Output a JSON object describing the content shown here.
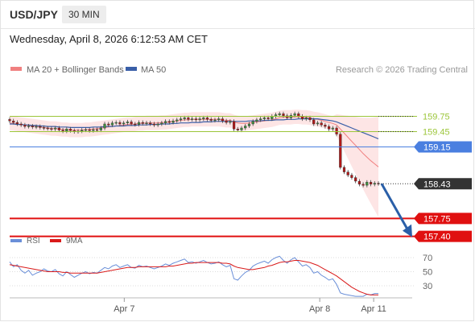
{
  "header": {
    "symbol": "USD/JPY",
    "timeframe": "30 MIN",
    "datetime": "Wednesday, April 8, 2026 6:12:53 AM CET"
  },
  "legend": {
    "bollinger": "MA 20 + Bollinger Bands",
    "ma50": "MA 50",
    "credit": "Research © 2026 Trading Central",
    "rsi": "RSI",
    "rsi_ma": "9MA"
  },
  "colors": {
    "bollinger": "#f08080",
    "ma50": "#3a5fa8",
    "resistance": "#9cc63a",
    "pivot": "#4a7fe0",
    "support": "#e01010",
    "current": "#333333",
    "bull": "#3f8f3f",
    "bear": "#b01818",
    "band_fill": "#fde0e0",
    "rsi": "#6a8fd8",
    "rsi_ma": "#d91a1a"
  },
  "chart_data": [
    {
      "type": "candlestick",
      "levels": [
        {
          "label": "159.75",
          "value": 159.75,
          "kind": "resistance"
        },
        {
          "label": "159.45",
          "value": 159.45,
          "kind": "resistance"
        },
        {
          "label": "159.15",
          "value": 159.15,
          "kind": "pivot"
        },
        {
          "label": "158.43",
          "value": 158.43,
          "kind": "current"
        },
        {
          "label": "157.75",
          "value": 157.75,
          "kind": "support"
        },
        {
          "label": "157.40",
          "value": 157.4,
          "kind": "support"
        }
      ],
      "ylim": [
        157.3,
        160.45
      ],
      "x_ticks": [
        "Apr 7",
        "Apr 8",
        "Apr 11"
      ],
      "x_tick_positions": [
        34,
        92,
        108
      ],
      "x_range": [
        0,
        118
      ],
      "close": [
        159.66,
        159.63,
        159.6,
        159.58,
        159.55,
        159.56,
        159.54,
        159.55,
        159.53,
        159.52,
        159.51,
        159.5,
        159.52,
        159.48,
        159.46,
        159.5,
        159.47,
        159.45,
        159.46,
        159.48,
        159.49,
        159.47,
        159.49,
        159.48,
        159.52,
        159.6,
        159.58,
        159.62,
        159.63,
        159.6,
        159.62,
        159.64,
        159.6,
        159.59,
        159.63,
        159.61,
        159.62,
        159.6,
        159.58,
        159.6,
        159.62,
        159.65,
        159.63,
        159.66,
        159.68,
        159.7,
        159.72,
        159.69,
        159.7,
        159.68,
        159.7,
        159.72,
        159.69,
        159.67,
        159.68,
        159.7,
        159.66,
        159.63,
        159.65,
        159.5,
        159.48,
        159.52,
        159.56,
        159.6,
        159.65,
        159.68,
        159.7,
        159.72,
        159.7,
        159.75,
        159.78,
        159.8,
        159.76,
        159.72,
        159.77,
        159.8,
        159.75,
        159.7,
        159.72,
        159.68,
        159.6,
        159.62,
        159.58,
        159.55,
        159.5,
        159.52,
        159.4,
        158.75,
        158.66,
        158.6,
        158.55,
        158.48,
        158.42,
        158.4,
        158.46,
        158.42,
        158.44,
        158.43
      ],
      "ma20": [
        159.62,
        159.61,
        159.6,
        159.59,
        159.58,
        159.57,
        159.56,
        159.55,
        159.54,
        159.53,
        159.52,
        159.51,
        159.51,
        159.5,
        159.49,
        159.49,
        159.48,
        159.48,
        159.48,
        159.48,
        159.49,
        159.49,
        159.5,
        159.51,
        159.52,
        159.53,
        159.54,
        159.55,
        159.56,
        159.57,
        159.58,
        159.59,
        159.59,
        159.6,
        159.61,
        159.61,
        159.62,
        159.62,
        159.62,
        159.62,
        159.63,
        159.63,
        159.64,
        159.65,
        159.66,
        159.67,
        159.68,
        159.68,
        159.69,
        159.69,
        159.69,
        159.69,
        159.69,
        159.69,
        159.69,
        159.69,
        159.68,
        159.67,
        159.67,
        159.64,
        159.62,
        159.61,
        159.61,
        159.62,
        159.63,
        159.64,
        159.65,
        159.66,
        159.67,
        159.68,
        159.7,
        159.72,
        159.73,
        159.73,
        159.73,
        159.74,
        159.74,
        159.73,
        159.73,
        159.72,
        159.7,
        159.69,
        159.67,
        159.65,
        159.63,
        159.61,
        159.58,
        159.5,
        159.42,
        159.34,
        159.26,
        159.18,
        159.1,
        159.02,
        158.95,
        158.88,
        158.82,
        158.76
      ],
      "ma50": [
        159.6,
        159.6,
        159.59,
        159.59,
        159.58,
        159.58,
        159.57,
        159.57,
        159.56,
        159.56,
        159.55,
        159.55,
        159.55,
        159.54,
        159.54,
        159.54,
        159.53,
        159.53,
        159.53,
        159.53,
        159.53,
        159.53,
        159.54,
        159.54,
        159.54,
        159.55,
        159.55,
        159.55,
        159.56,
        159.56,
        159.56,
        159.57,
        159.57,
        159.57,
        159.58,
        159.58,
        159.58,
        159.59,
        159.59,
        159.59,
        159.6,
        159.6,
        159.6,
        159.61,
        159.61,
        159.62,
        159.62,
        159.62,
        159.63,
        159.63,
        159.63,
        159.64,
        159.64,
        159.64,
        159.65,
        159.65,
        159.65,
        159.65,
        159.65,
        159.65,
        159.65,
        159.65,
        159.65,
        159.66,
        159.66,
        159.66,
        159.66,
        159.67,
        159.67,
        159.67,
        159.68,
        159.68,
        159.68,
        159.69,
        159.69,
        159.69,
        159.7,
        159.7,
        159.7,
        159.7,
        159.7,
        159.7,
        159.69,
        159.68,
        159.67,
        159.66,
        159.64,
        159.61,
        159.58,
        159.55,
        159.52,
        159.49,
        159.46,
        159.43,
        159.4,
        159.37,
        159.34,
        159.31
      ],
      "forecast_arrow": {
        "from": 158.43,
        "to": 157.4
      }
    },
    {
      "type": "line",
      "name": "RSI",
      "y_ticks": [
        70,
        50,
        30
      ],
      "ylim": [
        10,
        80
      ],
      "rsi": [
        64,
        57,
        60,
        52,
        48,
        52,
        45,
        48,
        50,
        54,
        51,
        50,
        53,
        47,
        44,
        50,
        46,
        42,
        45,
        48,
        50,
        47,
        49,
        48,
        52,
        56,
        54,
        58,
        60,
        56,
        58,
        60,
        56,
        55,
        59,
        57,
        58,
        56,
        54,
        56,
        58,
        61,
        59,
        62,
        64,
        66,
        68,
        63,
        64,
        62,
        64,
        66,
        63,
        61,
        62,
        64,
        60,
        57,
        59,
        40,
        38,
        44,
        49,
        52,
        58,
        61,
        63,
        65,
        62,
        67,
        70,
        72,
        66,
        62,
        67,
        70,
        64,
        58,
        60,
        56,
        48,
        50,
        45,
        42,
        38,
        40,
        32,
        20,
        18,
        17,
        16,
        15,
        15,
        15,
        18,
        17,
        19,
        19
      ],
      "ma9": [
        60,
        59,
        58,
        57,
        56,
        55,
        54,
        53,
        52,
        51,
        50,
        50,
        50,
        50,
        49,
        49,
        48,
        48,
        48,
        48,
        48,
        48,
        48,
        48,
        49,
        50,
        51,
        52,
        53,
        54,
        55,
        56,
        56,
        56,
        57,
        57,
        57,
        57,
        57,
        57,
        57,
        57,
        58,
        58,
        59,
        60,
        61,
        62,
        62,
        63,
        63,
        63,
        63,
        63,
        63,
        63,
        62,
        62,
        61,
        58,
        56,
        55,
        54,
        53,
        53,
        54,
        55,
        56,
        58,
        59,
        61,
        63,
        64,
        64,
        65,
        66,
        66,
        65,
        64,
        63,
        61,
        59,
        56,
        53,
        50,
        47,
        44,
        40,
        36,
        32,
        28,
        25,
        22,
        20,
        18,
        17,
        17,
        17
      ]
    }
  ]
}
